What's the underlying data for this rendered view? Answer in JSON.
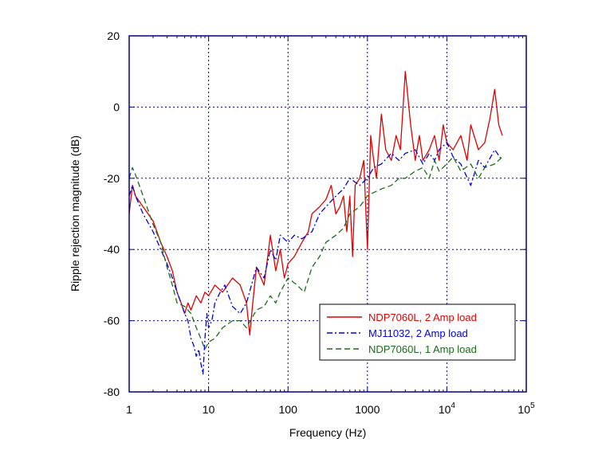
{
  "chart_data": {
    "type": "line",
    "title": "",
    "xlabel": "Frequency (Hz)",
    "ylabel": "Ripple rejection magnitude (dB)",
    "x_scale": "log",
    "xlim": [
      1,
      100000
    ],
    "ylim": [
      -80,
      20
    ],
    "grid": true,
    "legend_position": "lower-right",
    "x_ticks": [
      {
        "value": 1,
        "label": "1"
      },
      {
        "value": 10,
        "label": "10"
      },
      {
        "value": 100,
        "label": "100"
      },
      {
        "value": 1000,
        "label": "1000"
      },
      {
        "value": 10000,
        "label": "10",
        "exp": "4"
      },
      {
        "value": 100000,
        "label": "10",
        "exp": "5"
      }
    ],
    "y_ticks": [
      {
        "value": 20,
        "label": "20"
      },
      {
        "value": 0,
        "label": "0"
      },
      {
        "value": -20,
        "label": "-20"
      },
      {
        "value": -40,
        "label": "-40"
      },
      {
        "value": -60,
        "label": "-60"
      },
      {
        "value": -80,
        "label": "-80"
      }
    ],
    "series": [
      {
        "name": "NDP7060L, 2 Amp load",
        "color": "#e00000",
        "dash": "solid",
        "x": [
          1,
          1.1,
          1.2,
          1.5,
          2,
          2.5,
          3,
          3.5,
          4,
          4.5,
          5,
          5.5,
          6,
          7,
          8,
          9,
          10,
          12,
          15,
          20,
          25,
          30,
          33,
          36,
          40,
          50,
          60,
          70,
          80,
          90,
          100,
          120,
          150,
          180,
          200,
          250,
          300,
          350,
          400,
          450,
          500,
          550,
          600,
          650,
          700,
          800,
          900,
          1000,
          1100,
          1200,
          1300,
          1500,
          1700,
          2000,
          2300,
          2600,
          3000,
          3500,
          4000,
          4500,
          5000,
          6000,
          7000,
          8000,
          9000,
          10000,
          12000,
          15000,
          18000,
          20000,
          25000,
          30000,
          35000,
          40000,
          45000,
          50000
        ],
        "y": [
          -30,
          -22,
          -25,
          -28,
          -32,
          -38,
          -42,
          -46,
          -52,
          -55,
          -58,
          -55,
          -57,
          -53,
          -55,
          -52,
          -53,
          -50,
          -52,
          -48,
          -50,
          -55,
          -64,
          -55,
          -45,
          -50,
          -36,
          -46,
          -40,
          -48,
          -44,
          -42,
          -38,
          -35,
          -30,
          -28,
          -26,
          -22,
          -30,
          -28,
          -25,
          -35,
          -25,
          -42,
          -22,
          -20,
          -15,
          -40,
          -8,
          -15,
          -20,
          -2,
          -12,
          -15,
          -8,
          -12,
          10,
          -5,
          -15,
          -8,
          -15,
          -12,
          -8,
          -15,
          -5,
          -10,
          -12,
          -8,
          -15,
          -5,
          -12,
          -10,
          -3,
          5,
          -5,
          -8
        ]
      },
      {
        "name": "MJ11032, 2 Amp load",
        "color": "#0000e0",
        "dash": "dashdot",
        "x": [
          1,
          1.1,
          1.2,
          1.5,
          2,
          2.5,
          3,
          3.5,
          4,
          4.5,
          5,
          5.5,
          6,
          6.5,
          7,
          7.5,
          8,
          8.5,
          9,
          9.5,
          10,
          11,
          12,
          14,
          16,
          20,
          25,
          30,
          40,
          50,
          60,
          70,
          80,
          100,
          120,
          150,
          200,
          250,
          300,
          400,
          500,
          600,
          800,
          1000,
          1200,
          1500,
          2000,
          2500,
          3000,
          4000,
          5000,
          6000,
          7000,
          8000,
          10000,
          12000,
          15000,
          20000,
          25000,
          30000,
          40000,
          50000
        ],
        "y": [
          -25,
          -22,
          -25,
          -30,
          -35,
          -40,
          -44,
          -48,
          -52,
          -55,
          -58,
          -60,
          -65,
          -67,
          -70,
          -68,
          -72,
          -75,
          -65,
          -58,
          -62,
          -60,
          -55,
          -52,
          -50,
          -56,
          -58,
          -55,
          -45,
          -48,
          -40,
          -43,
          -36,
          -38,
          -36,
          -37,
          -35,
          -30,
          -28,
          -25,
          -23,
          -20,
          -22,
          -20,
          -17,
          -16,
          -13,
          -15,
          -13,
          -12,
          -16,
          -13,
          -15,
          -12,
          -10,
          -14,
          -16,
          -22,
          -15,
          -17,
          -12,
          -15
        ]
      },
      {
        "name": "NDP7060L, 1 Amp load",
        "color": "#1a6b1a",
        "dash": "dashed",
        "x": [
          1,
          1.1,
          1.2,
          1.5,
          2,
          2.5,
          3,
          3.5,
          4,
          5,
          6,
          7,
          8,
          9,
          10,
          12,
          15,
          20,
          25,
          30,
          40,
          50,
          60,
          70,
          80,
          100,
          130,
          160,
          200,
          250,
          300,
          400,
          500,
          600,
          800,
          1000,
          1200,
          1500,
          2000,
          2500,
          3000,
          4000,
          5000,
          6000,
          7000,
          8000,
          10000,
          12000,
          15000,
          20000,
          25000,
          30000,
          40000,
          50000
        ],
        "y": [
          -20,
          -17,
          -19,
          -25,
          -33,
          -38,
          -45,
          -50,
          -55,
          -56,
          -58,
          -62,
          -65,
          -68,
          -66,
          -65,
          -62,
          -60,
          -60,
          -62,
          -57,
          -56,
          -53,
          -55,
          -52,
          -48,
          -50,
          -52,
          -45,
          -42,
          -38,
          -36,
          -34,
          -30,
          -28,
          -25,
          -24,
          -23,
          -22,
          -20,
          -20,
          -18,
          -17,
          -20,
          -15,
          -18,
          -16,
          -14,
          -18,
          -16,
          -20,
          -17,
          -16,
          -14
        ]
      }
    ]
  }
}
